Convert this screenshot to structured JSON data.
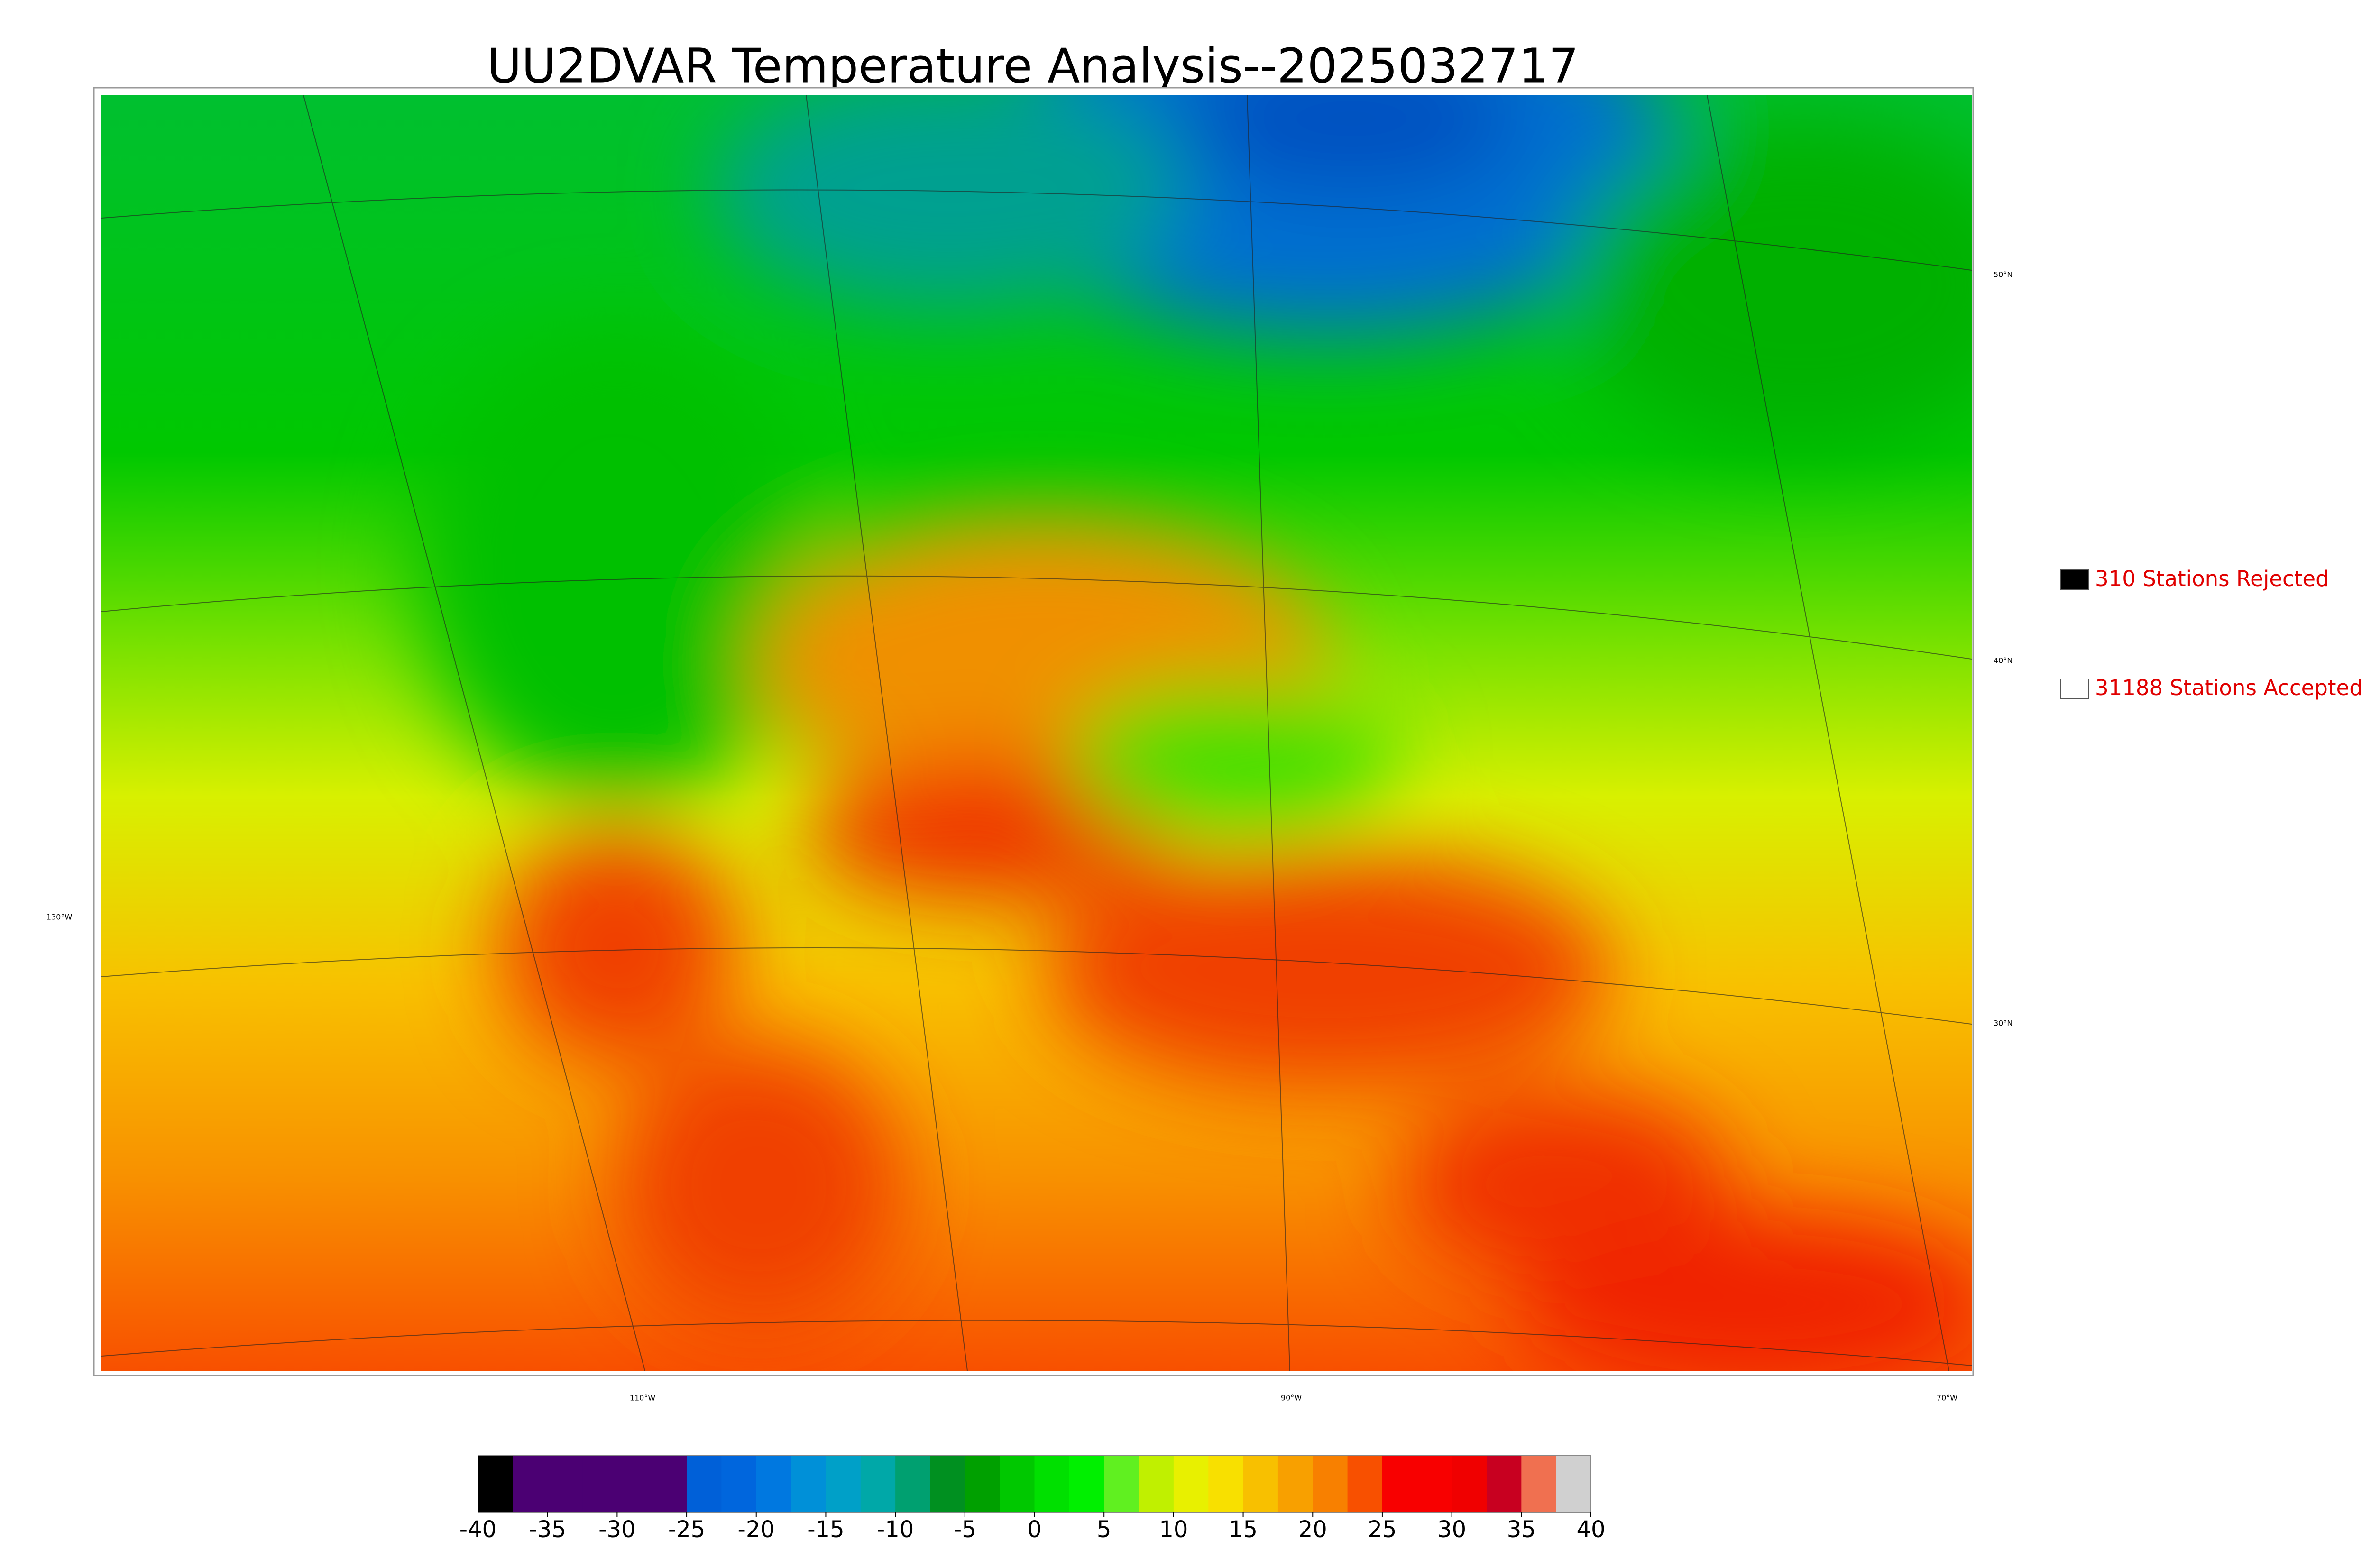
{
  "title": "UU2DVAR Temperature Analysis--2025032717",
  "legend": [
    {
      "label": "310 Stations Rejected",
      "color": "#000000"
    },
    {
      "label": "31188 Stations Accepted",
      "color": "#ffffff"
    }
  ],
  "graticule": {
    "latitudes": [
      "50°N",
      "40°N",
      "30°N"
    ],
    "longitudes": [
      "130°W",
      "110°W",
      "90°W",
      "70°W"
    ]
  },
  "colorbar": {
    "range": [
      -40,
      40
    ],
    "ticks": [
      -40,
      -35,
      -30,
      -25,
      -20,
      -15,
      -10,
      -5,
      0,
      5,
      10,
      15,
      20,
      25,
      30,
      35,
      40
    ],
    "colors": [
      "#000000",
      "#4b0073",
      "#4b0073",
      "#4b0073",
      "#4b0073",
      "#4b0073",
      "#0060d8",
      "#0066dd",
      "#0078e0",
      "#0090d8",
      "#00a0c8",
      "#00a8a8",
      "#00a070",
      "#009020",
      "#00a000",
      "#00c800",
      "#00e000",
      "#00f000",
      "#60f020",
      "#c0f000",
      "#e8f000",
      "#f8e000",
      "#f8c000",
      "#f8a000",
      "#f88000",
      "#f85000",
      "#f80000",
      "#f80000",
      "#f00000",
      "#c80020",
      "#f07050",
      "#d0d0d0"
    ]
  }
}
